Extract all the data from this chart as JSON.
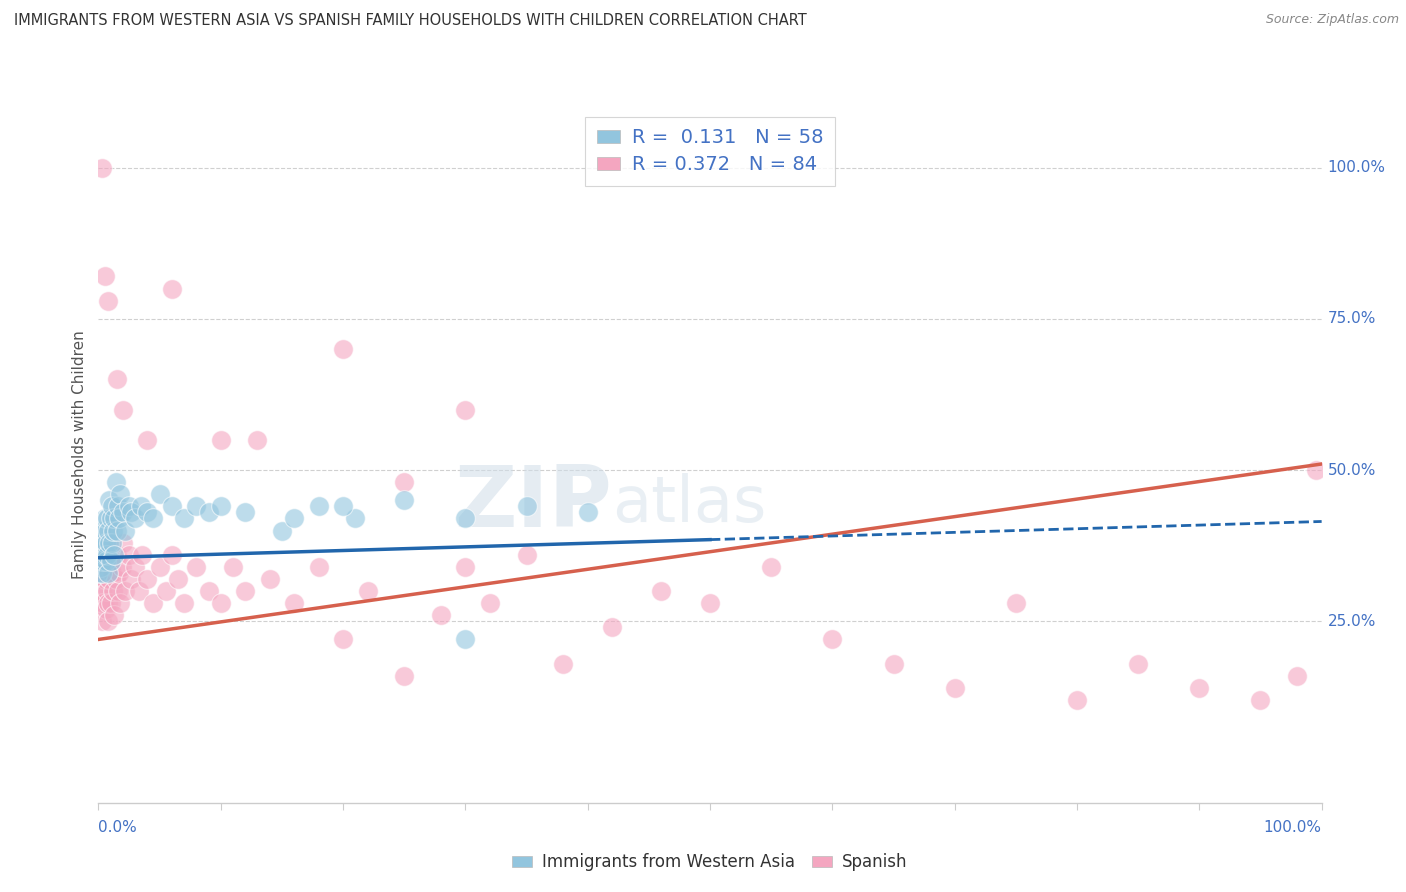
{
  "title": "IMMIGRANTS FROM WESTERN ASIA VS SPANISH FAMILY HOUSEHOLDS WITH CHILDREN CORRELATION CHART",
  "source": "Source: ZipAtlas.com",
  "ylabel": "Family Households with Children",
  "right_ytick_labels": [
    "25.0%",
    "50.0%",
    "75.0%",
    "100.0%"
  ],
  "right_ytick_values": [
    0.25,
    0.5,
    0.75,
    1.0
  ],
  "blue_color": "#92c5de",
  "pink_color": "#f4a6c0",
  "blue_line_color": "#2166ac",
  "pink_line_color": "#d6604d",
  "watermark_zip": "ZIP",
  "watermark_atlas": "atlas",
  "background_color": "#ffffff",
  "grid_color": "#d0d0d0",
  "xmin": 0.0,
  "xmax": 1.0,
  "ymin": -0.05,
  "ymax": 1.1,
  "blue_scatter_x": [
    0.0,
    0.001,
    0.001,
    0.002,
    0.002,
    0.003,
    0.003,
    0.003,
    0.004,
    0.004,
    0.005,
    0.005,
    0.005,
    0.006,
    0.006,
    0.007,
    0.007,
    0.008,
    0.008,
    0.009,
    0.009,
    0.01,
    0.01,
    0.011,
    0.011,
    0.012,
    0.013,
    0.013,
    0.014,
    0.015,
    0.016,
    0.017,
    0.018,
    0.02,
    0.022,
    0.025,
    0.027,
    0.03,
    0.035,
    0.04,
    0.045,
    0.05,
    0.06,
    0.07,
    0.08,
    0.09,
    0.1,
    0.12,
    0.15,
    0.18,
    0.21,
    0.25,
    0.3,
    0.35,
    0.4,
    0.3,
    0.2,
    0.16
  ],
  "blue_scatter_y": [
    0.33,
    0.35,
    0.38,
    0.34,
    0.4,
    0.36,
    0.33,
    0.37,
    0.38,
    0.35,
    0.4,
    0.36,
    0.42,
    0.35,
    0.38,
    0.42,
    0.36,
    0.4,
    0.33,
    0.38,
    0.45,
    0.35,
    0.42,
    0.38,
    0.44,
    0.4,
    0.42,
    0.36,
    0.48,
    0.4,
    0.44,
    0.42,
    0.46,
    0.43,
    0.4,
    0.44,
    0.43,
    0.42,
    0.44,
    0.43,
    0.42,
    0.46,
    0.44,
    0.42,
    0.44,
    0.43,
    0.44,
    0.43,
    0.4,
    0.44,
    0.42,
    0.45,
    0.42,
    0.44,
    0.43,
    0.22,
    0.44,
    0.42
  ],
  "pink_scatter_x": [
    0.0,
    0.001,
    0.001,
    0.002,
    0.002,
    0.003,
    0.003,
    0.004,
    0.004,
    0.005,
    0.005,
    0.006,
    0.007,
    0.007,
    0.008,
    0.008,
    0.009,
    0.01,
    0.01,
    0.011,
    0.012,
    0.013,
    0.014,
    0.015,
    0.016,
    0.017,
    0.018,
    0.019,
    0.02,
    0.022,
    0.025,
    0.027,
    0.03,
    0.033,
    0.036,
    0.04,
    0.045,
    0.05,
    0.055,
    0.06,
    0.065,
    0.07,
    0.08,
    0.09,
    0.1,
    0.11,
    0.12,
    0.14,
    0.16,
    0.18,
    0.2,
    0.22,
    0.25,
    0.28,
    0.3,
    0.32,
    0.35,
    0.38,
    0.42,
    0.46,
    0.5,
    0.55,
    0.6,
    0.65,
    0.7,
    0.75,
    0.8,
    0.85,
    0.9,
    0.95,
    0.98,
    0.995,
    0.1,
    0.2,
    0.3,
    0.06,
    0.13,
    0.25,
    0.04,
    0.02,
    0.015,
    0.008,
    0.005,
    0.003
  ],
  "pink_scatter_y": [
    0.3,
    0.28,
    0.32,
    0.33,
    0.36,
    0.25,
    0.3,
    0.33,
    0.28,
    0.36,
    0.32,
    0.27,
    0.34,
    0.3,
    0.25,
    0.28,
    0.32,
    0.35,
    0.28,
    0.33,
    0.3,
    0.26,
    0.32,
    0.36,
    0.3,
    0.33,
    0.28,
    0.34,
    0.38,
    0.3,
    0.36,
    0.32,
    0.34,
    0.3,
    0.36,
    0.32,
    0.28,
    0.34,
    0.3,
    0.36,
    0.32,
    0.28,
    0.34,
    0.3,
    0.28,
    0.34,
    0.3,
    0.32,
    0.28,
    0.34,
    0.22,
    0.3,
    0.16,
    0.26,
    0.34,
    0.28,
    0.36,
    0.18,
    0.24,
    0.3,
    0.28,
    0.34,
    0.22,
    0.18,
    0.14,
    0.28,
    0.12,
    0.18,
    0.14,
    0.12,
    0.16,
    0.5,
    0.55,
    0.7,
    0.6,
    0.8,
    0.55,
    0.48,
    0.55,
    0.6,
    0.65,
    0.78,
    0.82,
    1.0
  ]
}
